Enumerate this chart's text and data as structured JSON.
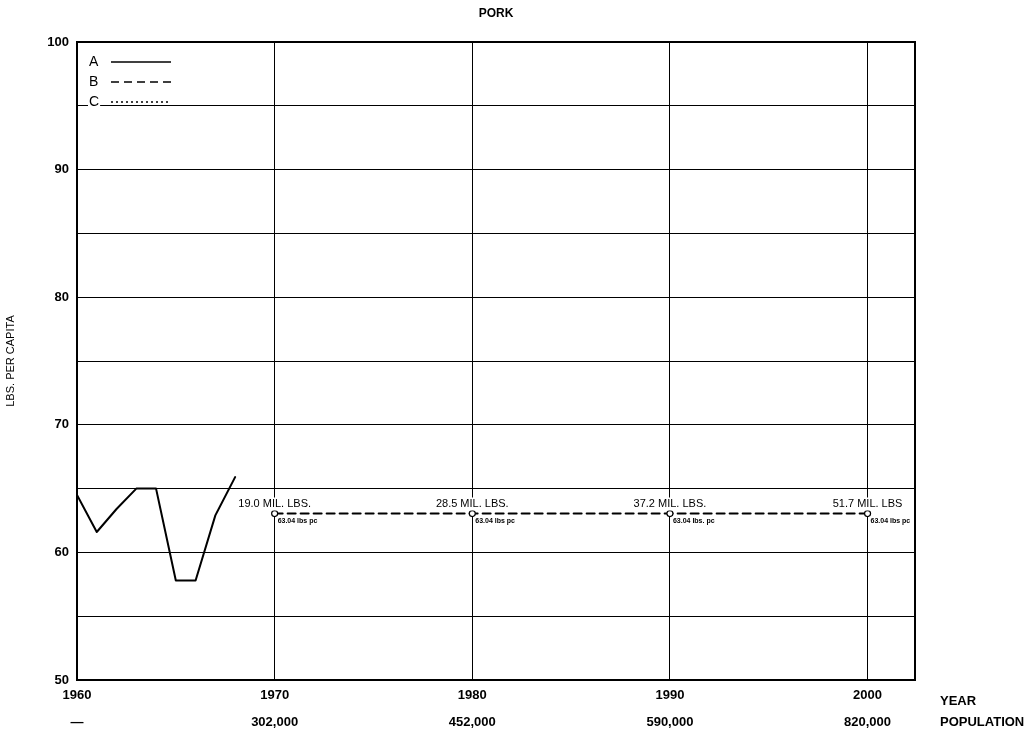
{
  "chart_data": {
    "type": "line",
    "title": "PORK",
    "xlabel": "YEAR",
    "ylabel": "LBS. PER CAPITA",
    "xlim": [
      1960,
      2002.4
    ],
    "xticks": [
      1960,
      1970,
      1980,
      1990,
      2000
    ],
    "ylim": [
      50,
      100
    ],
    "yticks": [
      50,
      {
        "value": 55,
        "label": null
      },
      60,
      {
        "value": 65,
        "label": null
      },
      70,
      {
        "value": 75,
        "label": null
      },
      80,
      {
        "value": 85,
        "label": null
      },
      90,
      {
        "value": 95,
        "label": null
      },
      100
    ],
    "grid": true,
    "legend": "top left",
    "series": [
      {
        "name": "A",
        "color": "#000000",
        "line_style": "solid",
        "marker": "none",
        "x": [
          1960,
          1961,
          1962,
          1963,
          1964,
          1965,
          1966,
          1967,
          1968
        ],
        "values": [
          64.5,
          61.6,
          63.4,
          65,
          65,
          57.8,
          57.8,
          62.9,
          65.9
        ]
      },
      {
        "name": "B",
        "color": "#000000",
        "line_style": "dashed",
        "marker": "circle",
        "x": [
          1970,
          1980,
          1990,
          2000
        ],
        "values": [
          63.04,
          63.04,
          63.04,
          63.04
        ]
      },
      {
        "name": "C",
        "color": "#000000",
        "line_style": "dotted",
        "marker": "none"
      }
    ],
    "annotations": [
      {
        "text": "19.0 MIL. LBS.",
        "x": 1970,
        "y": 63.04
      },
      {
        "text": "63.04 lbs pc",
        "x": 1970,
        "y": 63.04
      },
      {
        "text": "28.5 MIL. LBS.",
        "x": 1980,
        "y": 63.04
      },
      {
        "text": "63.04 lbs pc",
        "x": 1980,
        "y": 63.04
      },
      {
        "text": "37.2 MIL. LBS.",
        "x": 1990,
        "y": 63.04
      },
      {
        "text": "63.04 lbs. pc",
        "x": 1990,
        "y": 63.04
      },
      {
        "text": "51.7 MIL. LBS",
        "x": 2000,
        "y": 63.04
      },
      {
        "text": "63.04 lbs pc",
        "x": 2000,
        "y": 63.04
      },
      "—",
      "302,000",
      "452,000",
      "590,000",
      "820,000",
      "POPULATION"
    ]
  }
}
